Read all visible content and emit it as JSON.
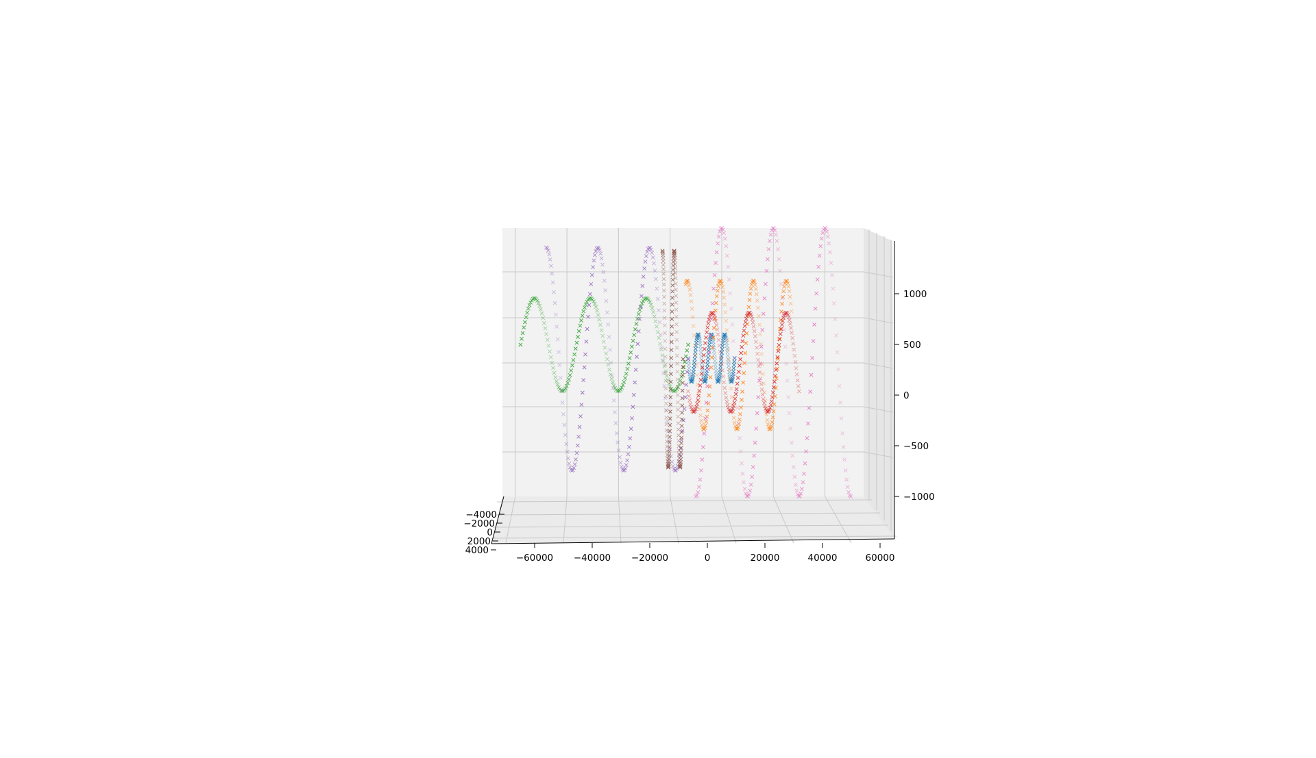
{
  "chart_data": {
    "type": "scatter",
    "projection": "3d",
    "title": "",
    "xlabel": "",
    "ylabel": "",
    "zlabel": "",
    "grid": true,
    "xlim": [
      -75000,
      65000
    ],
    "ylim": [
      -5000,
      4000
    ],
    "zlim": [
      -1500,
      1450
    ],
    "x_ticks": [
      {
        "value": -60000,
        "label": "−60000"
      },
      {
        "value": -40000,
        "label": "−40000"
      },
      {
        "value": -20000,
        "label": "−20000"
      },
      {
        "value": 0,
        "label": "0"
      },
      {
        "value": 20000,
        "label": "20000"
      },
      {
        "value": 40000,
        "label": "40000"
      },
      {
        "value": 60000,
        "label": "60000"
      }
    ],
    "y_ticks": [
      {
        "value": -4000,
        "label": "−4000"
      },
      {
        "value": -2000,
        "label": "−2000"
      },
      {
        "value": 0,
        "label": "0"
      },
      {
        "value": 2000,
        "label": "2000"
      },
      {
        "value": 4000,
        "label": "4000"
      }
    ],
    "z_ticks": [
      {
        "value": 1000,
        "label": "1000"
      },
      {
        "value": 500,
        "label": "500"
      },
      {
        "value": 0,
        "label": "0"
      },
      {
        "value": -500,
        "label": "−500"
      },
      {
        "value": -1000,
        "label": "−1000"
      }
    ],
    "series": [
      {
        "color": "#1f77b4",
        "marker": "x",
        "x0": -3000,
        "x1": 15000,
        "zc": 120,
        "amp": 230,
        "cycles": 3.5,
        "phase": 0.5
      },
      {
        "color": "#ff7f0e",
        "marker": "x",
        "x0": -4000,
        "x1": 37000,
        "zc": 150,
        "amp": 720,
        "cycles": 3.2,
        "phase": 0.2
      },
      {
        "color": "#2ca02c",
        "marker": "x",
        "x0": -68000,
        "x1": -3000,
        "zc": 250,
        "amp": 450,
        "cycles": 3.0,
        "phase": 0.0
      },
      {
        "color": "#d62728",
        "marker": "x",
        "x0": -3000,
        "x1": 40000,
        "zc": 80,
        "amp": 480,
        "cycles": 3.0,
        "phase": 0.6
      },
      {
        "color": "#9467bd",
        "marker": "x",
        "x0": -58000,
        "x1": -3000,
        "zc": 110,
        "amp": 1080,
        "cycles": 2.75,
        "phase": 0.25
      },
      {
        "color": "#8c564b",
        "marker": "x",
        "x0": -13000,
        "x1": -5000,
        "zc": 110,
        "amp": 1050,
        "cycles": 1.75,
        "phase": 0.25
      },
      {
        "color": "#e377c2",
        "marker": "x",
        "x0": 0,
        "x1": 60000,
        "zc": 80,
        "amp": 1300,
        "cycles": 3.0,
        "phase": 0.75
      }
    ]
  }
}
